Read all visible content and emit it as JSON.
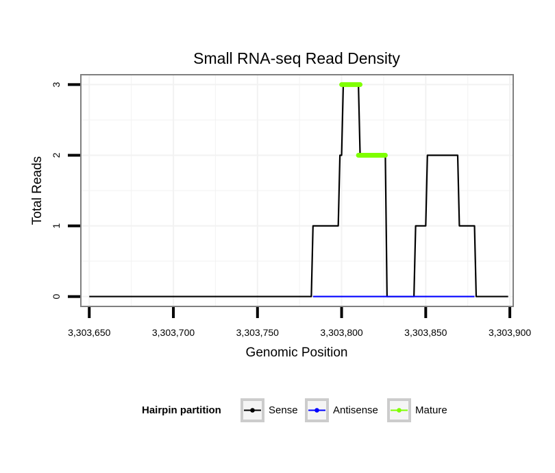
{
  "chart_data": {
    "type": "line",
    "title": "Small RNA-seq Read Density",
    "xlabel": "Genomic Position",
    "ylabel": "Total Reads",
    "xlim": [
      3303645,
      3303902
    ],
    "ylim": [
      -0.14,
      3.14
    ],
    "x_ticks": [
      3303650,
      3303700,
      3303750,
      3303800,
      3303850,
      3303900
    ],
    "x_tick_labels": [
      "3,303,650",
      "3,303,700",
      "3,303,750",
      "3,303,800",
      "3,303,850",
      "3,303,900"
    ],
    "y_ticks": [
      0,
      1,
      2,
      3
    ],
    "y_tick_labels": [
      "0",
      "1",
      "2",
      "3"
    ],
    "grid": true,
    "series": [
      {
        "name": "Sense",
        "color": "#000000",
        "style": "line",
        "x": [
          3303650,
          3303782,
          3303783,
          3303798,
          3303799,
          3303800,
          3303801,
          3303810,
          3303811,
          3303826,
          3303827,
          3303843,
          3303844,
          3303850,
          3303851,
          3303869,
          3303870,
          3303879,
          3303880,
          3303899
        ],
        "y": [
          0,
          0,
          1,
          1,
          2,
          2,
          3,
          3,
          2,
          2,
          0,
          0,
          1,
          1,
          2,
          2,
          1,
          1,
          0,
          0
        ]
      },
      {
        "name": "Antisense",
        "color": "#0000ff",
        "style": "line",
        "x": [
          3303783,
          3303879
        ],
        "y": [
          0,
          0
        ]
      },
      {
        "name": "Mature",
        "color": "#7fff00",
        "style": "thick-segments",
        "segments": [
          {
            "x": [
              3303800,
              3303811
            ],
            "y": 3
          },
          {
            "x": [
              3303810,
              3303826
            ],
            "y": 2
          }
        ]
      }
    ],
    "legend": {
      "title": "Hairpin partition",
      "position": "bottom",
      "entries": [
        {
          "label": "Sense",
          "color": "#000000"
        },
        {
          "label": "Antisense",
          "color": "#0000ff"
        },
        {
          "label": "Mature",
          "color": "#7fff00"
        }
      ]
    }
  }
}
